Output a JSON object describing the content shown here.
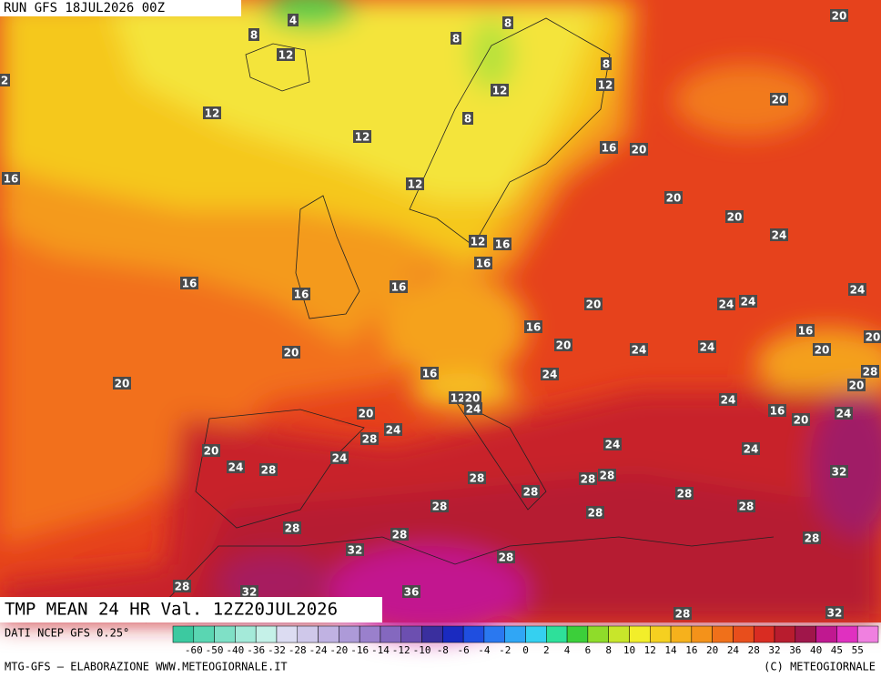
{
  "header": "RUN GFS 18JUL2026 00Z",
  "title": "TMP MEAN 24 HR Val. 12Z20JUL2026",
  "source": "DATI NCEP GFS 0.25°",
  "credit_left": "MTG-GFS — ELABORAZIONE WWW.METEOGIORNALE.IT",
  "credit_right": "(C) METEOGIORNALE",
  "legend": {
    "labels": [
      "-60",
      "-50",
      "-40",
      "-36",
      "-32",
      "-28",
      "-24",
      "-20",
      "-16",
      "-14",
      "-12",
      "-10",
      "-8",
      "-6",
      "-4",
      "-2",
      "0",
      "2",
      "4",
      "6",
      "8",
      "10",
      "12",
      "14",
      "16",
      "20",
      "24",
      "28",
      "32",
      "36",
      "40",
      "45",
      "55"
    ],
    "colors": [
      "#3cc9a0",
      "#5ad6b2",
      "#7fe0c6",
      "#a4ead9",
      "#c5f1e8",
      "#dcdcf2",
      "#cfc8ea",
      "#c0b2e2",
      "#ad9ad8",
      "#9a80cc",
      "#8468bf",
      "#6c4fb0",
      "#3a2f9e",
      "#1a2ac0",
      "#1f4ee0",
      "#2a78f0",
      "#30a6f5",
      "#35d0f0",
      "#2ee09a",
      "#3ccf3a",
      "#8fdc2a",
      "#c8e62a",
      "#f2ee2a",
      "#f5d020",
      "#f6b11c",
      "#f4921a",
      "#f0701a",
      "#e84e1c",
      "#d92c22",
      "#b81c2e",
      "#a0164a",
      "#c01890",
      "#e030c0",
      "#f080e0"
    ]
  },
  "contour_labels": [
    "4",
    "8",
    "8",
    "8",
    "20",
    "12",
    "8",
    "12",
    "2",
    "12",
    "20",
    "12",
    "8",
    "12",
    "16",
    "20",
    "16",
    "12",
    "20",
    "20",
    "24",
    "12",
    "16",
    "16",
    "16",
    "16",
    "16",
    "24",
    "20",
    "24",
    "24",
    "16",
    "16",
    "20",
    "20",
    "24",
    "24",
    "20",
    "20",
    "28",
    "16",
    "24",
    "20",
    "20",
    "12",
    "20",
    "24",
    "24",
    "16",
    "20",
    "24",
    "20",
    "24",
    "28",
    "24",
    "24",
    "20",
    "24",
    "24",
    "28",
    "32",
    "28",
    "28",
    "28",
    "28",
    "28",
    "28",
    "28",
    "28",
    "28",
    "28",
    "28",
    "32",
    "28",
    "28",
    "32",
    "36",
    "28",
    "32"
  ]
}
